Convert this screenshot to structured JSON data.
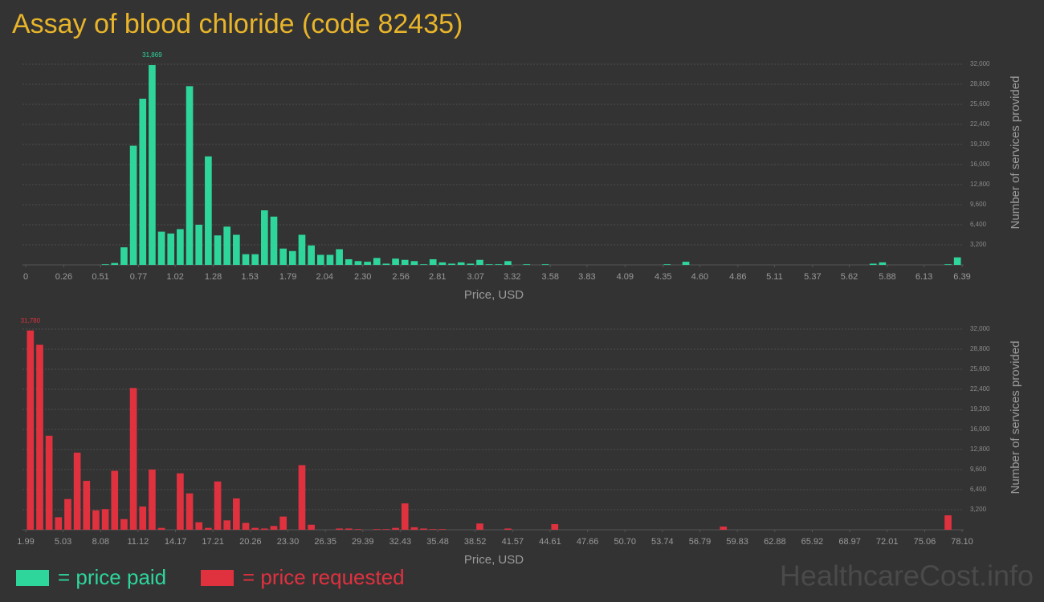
{
  "title": "Assay of blood chloride (code 82435)",
  "watermark": "HealthcareCost.info",
  "chart_data": [
    {
      "type": "bar",
      "x_label": "Price, USD",
      "y_label": "Number of services provided",
      "xlim": [
        0,
        6.39
      ],
      "xticks": [
        0,
        0.26,
        0.51,
        0.77,
        1.02,
        1.28,
        1.53,
        1.79,
        2.04,
        {
          "value": 2.3,
          "label": "2.30"
        },
        2.56,
        2.81,
        3.07,
        3.32,
        3.58,
        3.83,
        4.09,
        4.35,
        {
          "value": 4.6,
          "label": "4.60"
        },
        4.86,
        5.11,
        5.37,
        5.62,
        5.88,
        6.13,
        6.39
      ],
      "ylim": [
        0,
        32000
      ],
      "yticks": [
        {
          "value": 3200,
          "label": "3,200"
        },
        {
          "value": 6400,
          "label": "6,400"
        },
        {
          "value": 9600,
          "label": "9,600"
        },
        {
          "value": 12800,
          "label": "12,800"
        },
        {
          "value": 16000,
          "label": "16,000"
        },
        {
          "value": 19200,
          "label": "19,200"
        },
        {
          "value": 22400,
          "label": "22,400"
        },
        {
          "value": 25600,
          "label": "25,600"
        },
        {
          "value": 28800,
          "label": "28,800"
        },
        {
          "value": 32000,
          "label": "32,000"
        }
      ],
      "grid": true,
      "series": [
        {
          "name": "= price paid",
          "color": "#2ed69b",
          "values": [
            0,
            0,
            0,
            0,
            0,
            0,
            0,
            0,
            100,
            300,
            2800,
            19000,
            26500,
            31869,
            5300,
            5000,
            5700,
            28500,
            6400,
            17300,
            4700,
            6100,
            4800,
            1700,
            1700,
            8700,
            7700,
            2600,
            2200,
            4800,
            3100,
            1600,
            1600,
            2500,
            900,
            600,
            500,
            1100,
            200,
            1000,
            800,
            600,
            100,
            900,
            400,
            200,
            400,
            200,
            800,
            100,
            100,
            600,
            0,
            100,
            0,
            100,
            0,
            0,
            0,
            0,
            0,
            0,
            0,
            0,
            0,
            0,
            0,
            0,
            100,
            0,
            500,
            0,
            0,
            0,
            0,
            0,
            0,
            0,
            0,
            0,
            0,
            0,
            0,
            0,
            0,
            0,
            0,
            0,
            0,
            0,
            200,
            400,
            0,
            0,
            0,
            0,
            0,
            0,
            100,
            1200
          ],
          "value_labels": [
            null,
            null,
            null,
            null,
            null,
            null,
            null,
            null,
            null,
            null,
            null,
            null,
            null,
            "31,869",
            null,
            null,
            null,
            null,
            null,
            null,
            null,
            null,
            null,
            null,
            null,
            null,
            null,
            null,
            null,
            null,
            null,
            null,
            null,
            null,
            null,
            null,
            null,
            null,
            null,
            null,
            null,
            null,
            null,
            null,
            null,
            null,
            null,
            null,
            null,
            null,
            null,
            null,
            null,
            null,
            null,
            null,
            null,
            null,
            null,
            null,
            null,
            null,
            null,
            null,
            null,
            null,
            null,
            null,
            null,
            null,
            null,
            null,
            null,
            null,
            null,
            null,
            null,
            null,
            null,
            null,
            null,
            null,
            null,
            null,
            null,
            null,
            null,
            null,
            null,
            null,
            null,
            null,
            null,
            null,
            null,
            null,
            null,
            null,
            null,
            null
          ]
        }
      ]
    },
    {
      "type": "bar",
      "x_label": "Price, USD",
      "y_label": "Number of services provided",
      "xlim": [
        1.99,
        78.1
      ],
      "xticks": [
        1.99,
        5.03,
        8.08,
        11.12,
        14.17,
        17.21,
        20.26,
        {
          "value": 23.3,
          "label": "23.30"
        },
        26.35,
        29.39,
        32.43,
        35.48,
        38.52,
        41.57,
        44.61,
        47.66,
        {
          "value": 50.7,
          "label": "50.70"
        },
        53.74,
        56.79,
        59.83,
        62.88,
        65.92,
        68.97,
        72.01,
        75.06,
        {
          "value": 78.1,
          "label": "78.10"
        }
      ],
      "ylim": [
        0,
        32000
      ],
      "yticks": [
        {
          "value": 3200,
          "label": "3,200"
        },
        {
          "value": 6400,
          "label": "6,400"
        },
        {
          "value": 9600,
          "label": "9,600"
        },
        {
          "value": 12800,
          "label": "12,800"
        },
        {
          "value": 16000,
          "label": "16,000"
        },
        {
          "value": 19200,
          "label": "19,200"
        },
        {
          "value": 22400,
          "label": "22,400"
        },
        {
          "value": 25600,
          "label": "25,600"
        },
        {
          "value": 28800,
          "label": "28,800"
        },
        {
          "value": 32000,
          "label": "32,000"
        }
      ],
      "grid": true,
      "series": [
        {
          "name": "= price requested",
          "color": "#e0313f",
          "values": [
            31780,
            29500,
            15000,
            2000,
            4900,
            12300,
            7800,
            3100,
            3300,
            9400,
            1700,
            22600,
            3700,
            9600,
            300,
            0,
            9000,
            5800,
            1200,
            300,
            7700,
            1500,
            5000,
            1100,
            300,
            200,
            600,
            2100,
            0,
            10300,
            800,
            0,
            0,
            200,
            200,
            100,
            0,
            100,
            100,
            300,
            4200,
            400,
            200,
            100,
            100,
            0,
            0,
            0,
            1000,
            0,
            0,
            200,
            0,
            0,
            0,
            0,
            900,
            0,
            0,
            0,
            0,
            0,
            0,
            0,
            0,
            0,
            0,
            0,
            0,
            0,
            0,
            0,
            0,
            0,
            500,
            0,
            0,
            0,
            0,
            0,
            0,
            0,
            0,
            0,
            0,
            0,
            0,
            0,
            0,
            0,
            0,
            0,
            0,
            0,
            0,
            0,
            0,
            0,
            2300,
            0
          ],
          "value_labels": [
            "31,780",
            null,
            null,
            null,
            null,
            null,
            null,
            null,
            null,
            null,
            null,
            null,
            null,
            null,
            null,
            null,
            null,
            null,
            null,
            null,
            null,
            null,
            null,
            null,
            null,
            null,
            null,
            null,
            null,
            null,
            null,
            null,
            null,
            null,
            null,
            null,
            null,
            null,
            null,
            null,
            null,
            null,
            null,
            null,
            null,
            null,
            null,
            null,
            null,
            null,
            null,
            null,
            null,
            null,
            null,
            null,
            null,
            null,
            null,
            null,
            null,
            null,
            null,
            null,
            null,
            null,
            null,
            null,
            null,
            null,
            null,
            null,
            null,
            null,
            null,
            null,
            null,
            null,
            null,
            null,
            null,
            null,
            null,
            null,
            null,
            null,
            null,
            null,
            null,
            null,
            null,
            null,
            null,
            null,
            null,
            null,
            null,
            null,
            null,
            null
          ]
        }
      ]
    }
  ]
}
